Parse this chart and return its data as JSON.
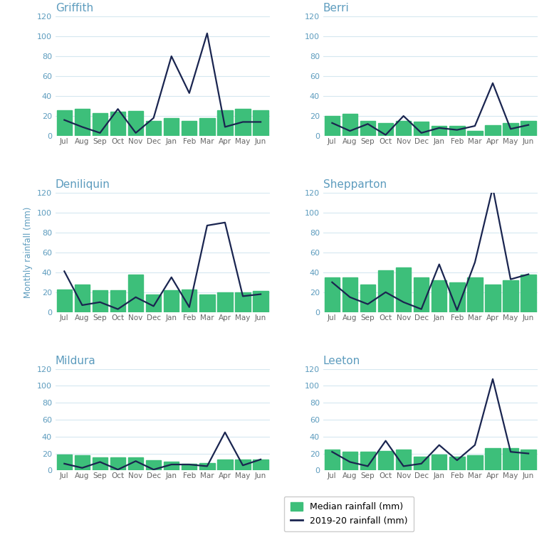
{
  "months": [
    "Jul",
    "Aug",
    "Sep",
    "Oct",
    "Nov",
    "Dec",
    "Jan",
    "Feb",
    "Mar",
    "Apr",
    "May",
    "Jun"
  ],
  "subplots": [
    {
      "title": "Griffith",
      "median": [
        26,
        27,
        23,
        24,
        25,
        15,
        18,
        15,
        18,
        26,
        27,
        26
      ],
      "observed": [
        16,
        9,
        3,
        27,
        3,
        18,
        80,
        43,
        103,
        9,
        14,
        14
      ]
    },
    {
      "title": "Berri",
      "median": [
        20,
        22,
        15,
        13,
        15,
        14,
        10,
        10,
        5,
        11,
        13,
        15
      ],
      "observed": [
        13,
        5,
        12,
        1,
        20,
        3,
        8,
        6,
        10,
        53,
        7,
        11
      ]
    },
    {
      "title": "Deniliquin",
      "median": [
        23,
        28,
        22,
        22,
        38,
        18,
        22,
        23,
        18,
        20,
        20,
        21
      ],
      "observed": [
        41,
        7,
        10,
        3,
        15,
        6,
        35,
        5,
        87,
        90,
        16,
        18
      ]
    },
    {
      "title": "Shepparton",
      "median": [
        35,
        35,
        28,
        42,
        45,
        35,
        32,
        30,
        35,
        28,
        32,
        38
      ],
      "observed": [
        30,
        15,
        8,
        20,
        10,
        3,
        48,
        2,
        50,
        125,
        33,
        38
      ]
    },
    {
      "title": "Mildura",
      "median": [
        19,
        18,
        15,
        15,
        15,
        12,
        10,
        8,
        9,
        13,
        13,
        13
      ],
      "observed": [
        8,
        3,
        10,
        1,
        11,
        1,
        7,
        7,
        5,
        45,
        6,
        13
      ]
    },
    {
      "title": "Leeton",
      "median": [
        25,
        22,
        22,
        23,
        25,
        16,
        19,
        16,
        18,
        26,
        26,
        25
      ],
      "observed": [
        22,
        10,
        5,
        35,
        5,
        8,
        30,
        12,
        30,
        108,
        22,
        20
      ]
    }
  ],
  "bar_color": "#3dbf7a",
  "line_color": "#1a2550",
  "title_color": "#5d9cbe",
  "tick_color": "#666666",
  "ytick_color": "#5d9cbe",
  "grid_color": "#d5e8f0",
  "ylim": [
    0,
    120
  ],
  "yticks": [
    0,
    20,
    40,
    60,
    80,
    100,
    120
  ],
  "ylabel": "Monthly rainfall (mm)",
  "legend_median_label": "Median rainfall (mm)",
  "legend_observed_label": "2019-20 rainfall (mm)",
  "background_color": "#ffffff"
}
